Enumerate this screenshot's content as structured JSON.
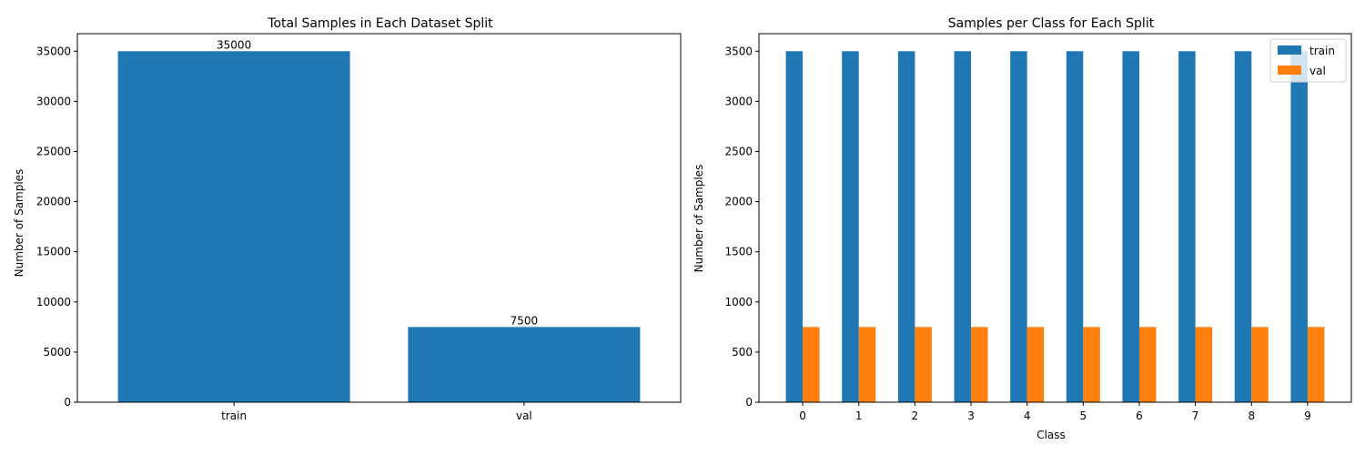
{
  "chart_data": [
    {
      "type": "bar",
      "title": "Total Samples in Each Dataset Split",
      "xlabel": "",
      "ylabel": "Number of Samples",
      "categories": [
        "train",
        "val"
      ],
      "values": [
        35000,
        7500
      ],
      "data_labels": [
        "35000",
        "7500"
      ],
      "ylim": [
        0,
        36750
      ],
      "yticks": [
        0,
        5000,
        10000,
        15000,
        20000,
        25000,
        30000,
        35000
      ],
      "grid": false,
      "color": "#1f77b4"
    },
    {
      "type": "bar",
      "title": "Samples per Class for Each Split",
      "xlabel": "Class",
      "ylabel": "Number of Samples",
      "categories": [
        "0",
        "1",
        "2",
        "3",
        "4",
        "5",
        "6",
        "7",
        "8",
        "9"
      ],
      "series": [
        {
          "name": "train",
          "values": [
            3500,
            3500,
            3500,
            3500,
            3500,
            3500,
            3500,
            3500,
            3500,
            3500
          ],
          "color": "#1f77b4"
        },
        {
          "name": "val",
          "values": [
            750,
            750,
            750,
            750,
            750,
            750,
            750,
            750,
            750,
            750
          ],
          "color": "#ff7f0e"
        }
      ],
      "ylim": [
        0,
        3675
      ],
      "yticks": [
        0,
        500,
        1000,
        1500,
        2000,
        2500,
        3000,
        3500
      ],
      "grid": false,
      "legend": "top-right"
    }
  ]
}
